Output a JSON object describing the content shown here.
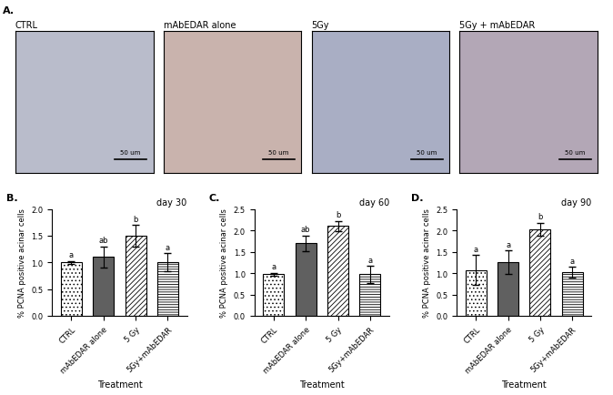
{
  "panel_labels": [
    "A.",
    "B.",
    "C.",
    "D."
  ],
  "images": [
    {
      "title": "CTRL",
      "scale_bar": "50 um"
    },
    {
      "title": "mAbEDAR alone",
      "scale_bar": "50 um"
    },
    {
      "title": "5Gy",
      "scale_bar": "50 um"
    },
    {
      "title": "5Gy + mAbEDAR",
      "scale_bar": "50 um"
    }
  ],
  "chart_data": [
    {
      "type": "bar",
      "title": "day 30",
      "categories": [
        "CTRL",
        "mAbEDAR alone",
        "5 Gy",
        "5Gy+mAbEDAR"
      ],
      "values": [
        1.0,
        1.1,
        1.5,
        1.0
      ],
      "errors": [
        0.03,
        0.2,
        0.2,
        0.17
      ],
      "annotations": [
        "a",
        "ab",
        "b",
        "a"
      ],
      "colors": [
        "#ffffff",
        "#606060",
        "#ffffff",
        "#ffffff"
      ],
      "x_label": "Treatment",
      "y_label": "% PCNA positive acinar cells",
      "ylim": [
        0,
        2.0
      ],
      "yticks": [
        {
          "value": 0,
          "label": "0.0"
        },
        0.5,
        {
          "value": 1.0,
          "label": "1.0"
        },
        1.5,
        {
          "value": 2.0,
          "label": "2.0"
        }
      ],
      "grid": false
    },
    {
      "type": "bar",
      "title": "day 60",
      "categories": [
        "CTRL",
        "mAbEDAR alone",
        "5 Gy",
        "5Gy+mAbEDAR"
      ],
      "values": [
        0.97,
        1.7,
        2.1,
        0.97
      ],
      "errors": [
        0.04,
        0.18,
        0.12,
        0.2
      ],
      "annotations": [
        "a",
        "ab",
        "b",
        "a"
      ],
      "colors": [
        "#ffffff",
        "#606060",
        "#ffffff",
        "#ffffff"
      ],
      "x_label": "Treatment",
      "y_label": "% PCNA positive acinar cells",
      "ylim": [
        0,
        2.5
      ],
      "yticks": [
        {
          "value": 0,
          "label": "0.0"
        },
        0.5,
        {
          "value": 1.0,
          "label": "1.0"
        },
        1.5,
        {
          "value": 2.0,
          "label": "2.0"
        },
        2.5
      ],
      "grid": false
    },
    {
      "type": "bar",
      "title": "day 90",
      "categories": [
        "CTRL",
        "mAbEDAR alone",
        "5 Gy",
        "5Gy+mAbEDAR"
      ],
      "values": [
        1.07,
        1.25,
        2.03,
        1.02
      ],
      "errors": [
        0.35,
        0.28,
        0.15,
        0.13
      ],
      "annotations": [
        "a",
        "a",
        "b",
        "a"
      ],
      "colors": [
        "#ffffff",
        "#606060",
        "#ffffff",
        "#ffffff"
      ],
      "x_label": "Treatment",
      "y_label": "% PCNA positive acinar cells",
      "ylim": [
        0,
        2.5
      ],
      "yticks": [
        {
          "value": 0,
          "label": "0.0"
        },
        0.5,
        {
          "value": 1.0,
          "label": "1.0"
        },
        1.5,
        {
          "value": 2.0,
          "label": "2.0"
        },
        2.5
      ],
      "grid": false
    }
  ]
}
